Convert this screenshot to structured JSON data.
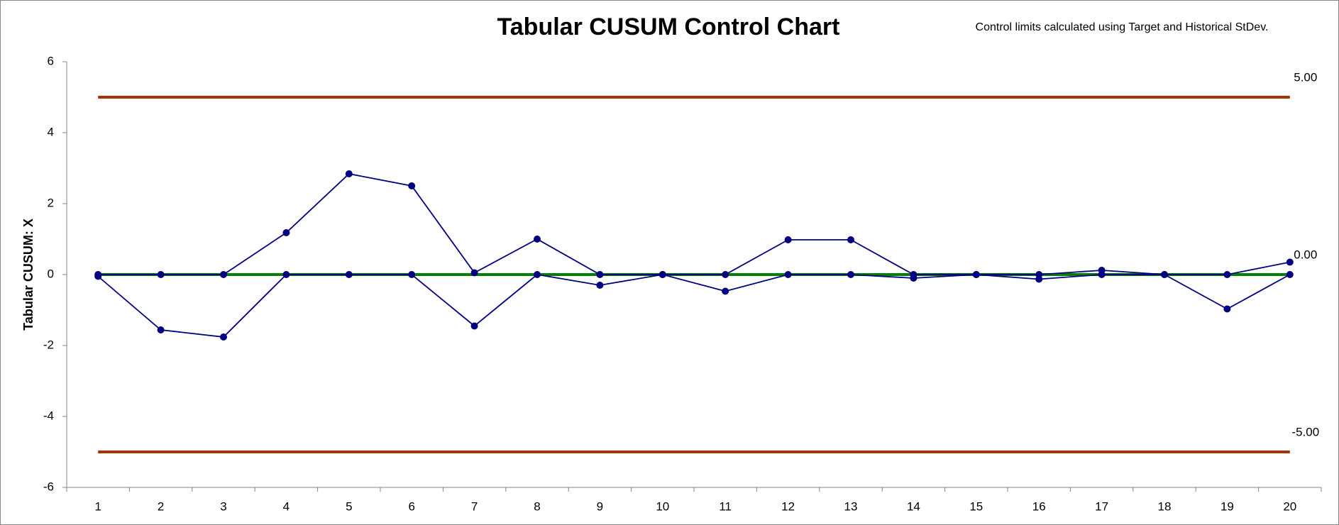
{
  "chart_data": {
    "type": "line",
    "title": "Tabular CUSUM Control Chart",
    "annotation": "Control limits calculated using Target and Historical StDev.",
    "y_label": "Tabular CUSUM: X",
    "categories": [
      "1",
      "2",
      "3",
      "4",
      "5",
      "6",
      "7",
      "8",
      "9",
      "10",
      "11",
      "12",
      "13",
      "14",
      "15",
      "16",
      "17",
      "18",
      "19",
      "20"
    ],
    "series": [
      {
        "color": "#000080",
        "values": [
          0,
          0,
          0,
          1.18,
          2.84,
          2.5,
          0.05,
          1.0,
          0,
          0,
          0,
          0.98,
          0.98,
          0,
          0,
          0,
          0.12,
          0,
          0,
          0.35
        ]
      },
      {
        "color": "#000080",
        "values": [
          -0.05,
          -1.56,
          -1.76,
          0,
          0,
          0,
          -1.45,
          0,
          -0.3,
          0,
          -0.47,
          0,
          0,
          -0.1,
          0,
          -0.13,
          0,
          0,
          -0.97,
          0
        ]
      }
    ],
    "limits": {
      "values": [
        5,
        0,
        -5
      ],
      "value_labels": [
        "5.00",
        "0.00",
        "-5.00"
      ],
      "colors": [
        "#a93200",
        "#008000",
        "#a93200"
      ]
    },
    "ylim": [
      -6,
      6
    ],
    "yticks": [
      -6,
      -4,
      -2,
      0,
      2,
      4,
      6
    ]
  }
}
